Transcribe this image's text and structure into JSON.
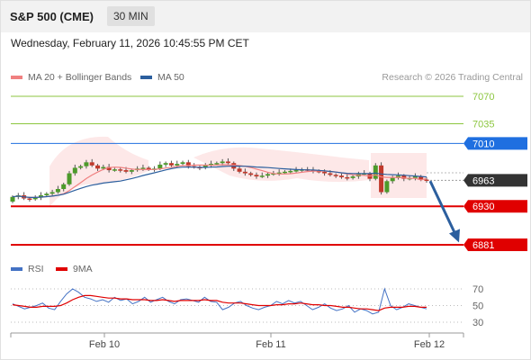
{
  "header": {
    "title": "S&P 500 (CME)",
    "interval": "30 MIN"
  },
  "datetime": "Wednesday, February 11, 2026 10:45:55 PM CET",
  "legend_price": [
    {
      "label": "MA 20 + Bollinger Bands",
      "color": "#f08080"
    },
    {
      "label": "MA 50",
      "color": "#2c5f9e"
    }
  ],
  "credit": "Research © 2026 Trading Central",
  "legend_rsi": [
    {
      "label": "RSI",
      "color": "#4472c4"
    },
    {
      "label": "9MA",
      "color": "#e00000"
    }
  ],
  "chart_data": [
    {
      "type": "candlestick",
      "x_ticks": [
        "Feb 10",
        "Feb 11",
        "Feb 12"
      ],
      "levels": [
        {
          "value": 7070,
          "label": "7070",
          "kind": "resistance-target",
          "color": "#8cc63f"
        },
        {
          "value": 7035,
          "label": "7035",
          "kind": "resistance-target",
          "color": "#8cc63f"
        },
        {
          "value": 7010,
          "label": "7010",
          "kind": "pivot",
          "color": "#1f6fe0"
        },
        {
          "value": 6963,
          "label": "6963",
          "kind": "last-price",
          "color": "#333333"
        },
        {
          "value": 6930,
          "label": "6930",
          "kind": "support",
          "color": "#e00000"
        },
        {
          "value": 6881,
          "label": "6881",
          "kind": "support",
          "color": "#e00000"
        }
      ],
      "arrow": {
        "from": 6962,
        "to": 6884,
        "color": "#2c5f9e"
      },
      "close_series": [
        6942,
        6944,
        6940,
        6939,
        6941,
        6944,
        6946,
        6948,
        6952,
        6958,
        6972,
        6979,
        6981,
        6986,
        6982,
        6978,
        6980,
        6976,
        6977,
        6976,
        6974,
        6976,
        6978,
        6979,
        6977,
        6978,
        6983,
        6985,
        6982,
        6984,
        6986,
        6981,
        6980,
        6979,
        6982,
        6984,
        6985,
        6987,
        6985,
        6978,
        6974,
        6972,
        6970,
        6968,
        6969,
        6971,
        6972,
        6973,
        6974,
        6975,
        6976,
        6977,
        6976,
        6975,
        6974,
        6972,
        6970,
        6969,
        6967,
        6966,
        6968,
        6971,
        6972,
        6965,
        6982,
        6948,
        6962,
        6966,
        6969,
        6965,
        6966,
        6968,
        6964,
        6963
      ],
      "ylim": [
        6872,
        7082
      ]
    },
    {
      "type": "line",
      "ylabel": "",
      "y_ticks": [
        70,
        50,
        30
      ],
      "ylim": [
        25,
        82
      ],
      "series": [
        {
          "name": "RSI",
          "values": [
            52,
            49,
            46,
            48,
            50,
            53,
            47,
            45,
            55,
            64,
            70,
            66,
            60,
            58,
            55,
            57,
            54,
            60,
            56,
            58,
            52,
            55,
            60,
            54,
            57,
            60,
            55,
            52,
            57,
            58,
            56,
            54,
            60,
            55,
            54,
            45,
            48,
            53,
            55,
            50,
            47,
            45,
            48,
            50,
            55,
            52,
            56,
            53,
            55,
            50,
            45,
            48,
            52,
            47,
            44,
            46,
            50,
            42,
            46,
            44,
            40,
            42,
            70,
            50,
            45,
            48,
            52,
            50,
            48,
            46
          ]
        },
        {
          "name": "9MA",
          "values": [
            51,
            50,
            49,
            48,
            48,
            49,
            49,
            49,
            50,
            53,
            57,
            60,
            62,
            62,
            61,
            60,
            59,
            59,
            58,
            58,
            57,
            57,
            57,
            56,
            56,
            57,
            56,
            55,
            56,
            56,
            56,
            56,
            57,
            56,
            56,
            54,
            53,
            53,
            53,
            52,
            51,
            50,
            50,
            50,
            51,
            51,
            52,
            52,
            53,
            52,
            51,
            51,
            50,
            50,
            49,
            48,
            48,
            47,
            46,
            46,
            45,
            44,
            47,
            48,
            48,
            48,
            49,
            49,
            48,
            48
          ]
        }
      ]
    }
  ]
}
